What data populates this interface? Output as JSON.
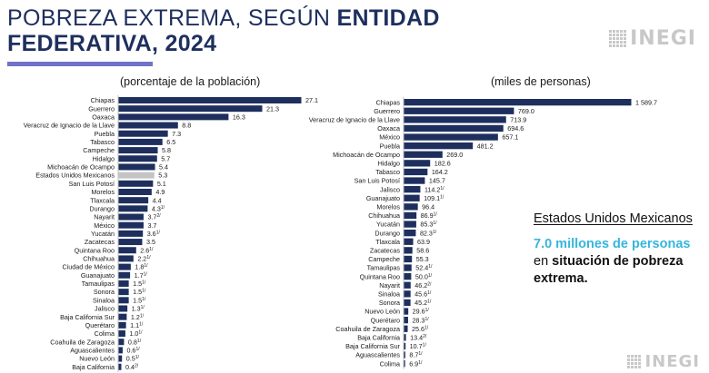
{
  "title": {
    "line1_plain": "POBREZA EXTREMA, SEGÚN ",
    "line1_bold": "ENTIDAD",
    "line2": "FEDERATIVA, 2024"
  },
  "logo": {
    "text": "INEGI"
  },
  "colors": {
    "bar": "#1e2f5e",
    "national": "#c4c4c4",
    "accent": "#6f72c7",
    "highlight": "#35b6dd"
  },
  "callout": {
    "region": "Estados Unidos Mexicanos",
    "value": "7.0 millones de personas",
    "middle": " en ",
    "rest": "situación de pobreza extrema."
  },
  "chart_data": [
    {
      "type": "bar",
      "orientation": "horizontal",
      "title": "(porcentaje de la población)",
      "xlim": [
        0,
        27.1
      ],
      "highlight_category": "Estados Unidos Mexicanos",
      "categories": [
        "Chiapas",
        "Guerrero",
        "Oaxaca",
        "Veracruz de Ignacio de la Llave",
        "Puebla",
        "Tabasco",
        "Campeche",
        "Hidalgo",
        "Michoacán de Ocampo",
        "Estados Unidos Mexicanos",
        "San Luis Potosí",
        "Morelos",
        "Tlaxcala",
        "Durango",
        "Nayarit",
        "México",
        "Yucatán",
        "Zacatecas",
        "Quintana Roo",
        "Chihuahua",
        "Ciudad de México",
        "Guanajuato",
        "Tamaulipas",
        "Sonora",
        "Sinaloa",
        "Jalisco",
        "Baja California Sur",
        "Querétaro",
        "Colima",
        "Coahuila de Zaragoza",
        "Aguascalientes",
        "Nuevo León",
        "Baja California"
      ],
      "values": [
        27.1,
        21.3,
        16.3,
        8.8,
        7.3,
        6.5,
        5.8,
        5.7,
        5.4,
        5.3,
        5.1,
        4.9,
        4.4,
        4.3,
        3.7,
        3.7,
        3.6,
        3.5,
        2.6,
        2.2,
        1.8,
        1.7,
        1.5,
        1.5,
        1.5,
        1.3,
        1.2,
        1.1,
        1.0,
        0.8,
        0.6,
        0.5,
        0.4
      ],
      "labels": [
        "27.1",
        "21.3",
        "16.3",
        "8.8",
        "7.3",
        "6.5",
        "5.8",
        "5.7",
        "5.4",
        "5.3",
        "5.1",
        "4.9",
        "4.4",
        "4.3",
        "3.7",
        "3.7",
        "3.6",
        "3.5",
        "2.6",
        "2.2",
        "1.8",
        "1.7",
        "1.5",
        "1.5",
        "1.5",
        "1.3",
        "1.2",
        "1.1",
        "1.0",
        "0.8",
        "0.6",
        "0.5",
        "0.4"
      ],
      "notes": [
        "",
        "",
        "",
        "",
        "",
        "",
        "",
        "",
        "",
        "",
        "",
        "",
        "",
        "1/",
        "2/",
        "",
        "1/",
        "",
        "1/",
        "1/",
        "1/",
        "1/",
        "1/",
        "1/",
        "1/",
        "1/",
        "1/",
        "1/",
        "1/",
        "1/",
        "1/",
        "1/",
        "2/"
      ]
    },
    {
      "type": "bar",
      "orientation": "horizontal",
      "title": "(miles de personas)",
      "xlim": [
        0,
        1589.7
      ],
      "categories": [
        "Chiapas",
        "Guerrero",
        "Veracruz de Ignacio de la Llave",
        "Oaxaca",
        "México",
        "Puebla",
        "Michoacán de Ocampo",
        "Hidalgo",
        "Tabasco",
        "San Luis Potosí",
        "Jalisco",
        "Guanajuato",
        "Morelos",
        "Chihuahua",
        "Yucatán",
        "Durango",
        "Tlaxcala",
        "Zacatecas",
        "Campeche",
        "Tamaulipas",
        "Quintana Roo",
        "Nayarit",
        "Sinaloa",
        "Sonora",
        "Nuevo León",
        "Querétaro",
        "Coahuila de Zaragoza",
        "Baja California",
        "Baja California Sur",
        "Aguascalientes",
        "Colima"
      ],
      "values": [
        1589.7,
        769.0,
        713.9,
        694.6,
        657.1,
        481.2,
        269.0,
        182.6,
        164.2,
        145.7,
        114.2,
        109.1,
        96.4,
        86.9,
        85.3,
        82.3,
        63.9,
        58.6,
        55.3,
        52.4,
        50.0,
        46.2,
        45.6,
        45.2,
        29.6,
        28.3,
        25.6,
        13.4,
        10.7,
        8.7,
        6.9
      ],
      "labels": [
        "1 589.7",
        "769.0",
        "713.9",
        "694.6",
        "657.1",
        "481.2",
        "269.0",
        "182.6",
        "164.2",
        "145.7",
        "114.2",
        "109.1",
        "96.4",
        "86.9",
        "85.3",
        "82.3",
        "63.9",
        "58.6",
        "55.3",
        "52.4",
        "50.0",
        "46.2",
        "45.6",
        "45.2",
        "29.6",
        "28.3",
        "25.6",
        "13.4",
        "10.7",
        "8.7",
        "6.9"
      ],
      "notes": [
        "",
        "",
        "",
        "",
        "",
        "",
        "",
        "",
        "",
        "",
        "1/",
        "1/",
        "",
        "1/",
        "1/",
        "1/",
        "",
        "",
        "",
        "1/",
        "1/",
        "2/",
        "1/",
        "1/",
        "1/",
        "1/",
        "1/",
        "2/",
        "1/",
        "1/",
        "1/"
      ]
    }
  ]
}
